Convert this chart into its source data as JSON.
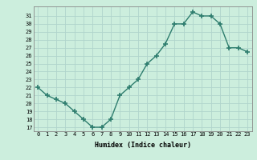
{
  "x": [
    0,
    1,
    2,
    3,
    4,
    5,
    6,
    7,
    8,
    9,
    10,
    11,
    12,
    13,
    14,
    15,
    16,
    17,
    18,
    19,
    20,
    21,
    22,
    23
  ],
  "y": [
    22,
    21,
    20.5,
    20,
    19,
    18,
    17,
    17,
    18,
    21,
    22,
    23,
    25,
    26,
    27.5,
    30,
    30,
    31.5,
    31,
    31,
    30,
    27,
    27,
    26.5
  ],
  "xlim": [
    -0.5,
    23.5
  ],
  "ylim": [
    16.5,
    32.2
  ],
  "yticks": [
    17,
    18,
    19,
    20,
    21,
    22,
    23,
    24,
    25,
    26,
    27,
    28,
    29,
    30,
    31
  ],
  "xticks": [
    0,
    1,
    2,
    3,
    4,
    5,
    6,
    7,
    8,
    9,
    10,
    11,
    12,
    13,
    14,
    15,
    16,
    17,
    18,
    19,
    20,
    21,
    22,
    23
  ],
  "xlabel": "Humidex (Indice chaleur)",
  "line_color": "#2e7d6e",
  "bg_color": "#cceedd",
  "grid_color": "#b0d4cc",
  "marker_color": "#2e7d6e"
}
